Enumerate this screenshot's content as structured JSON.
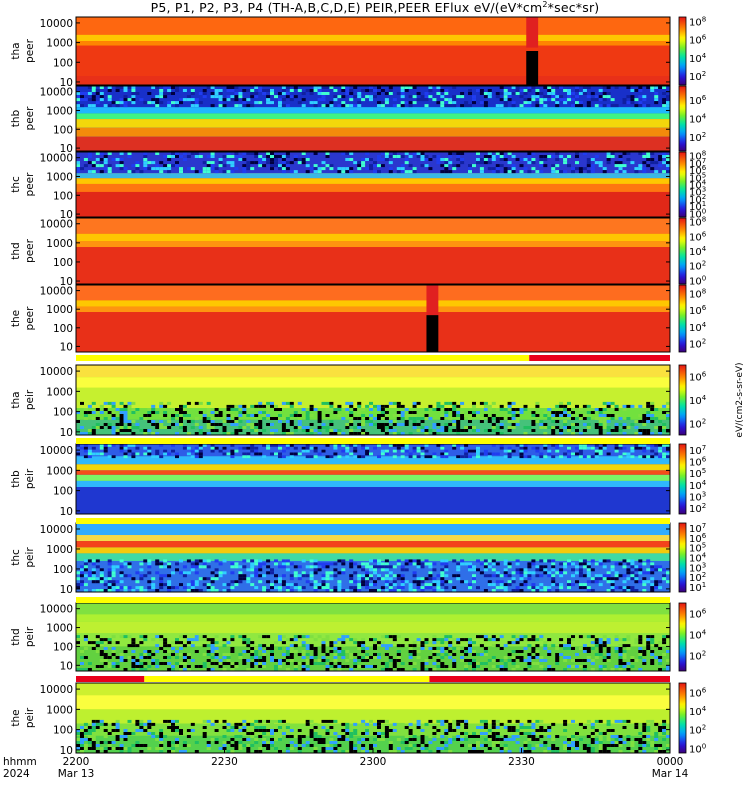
{
  "title": "P5, P1, P2, P3, P4 (TH-A,B,C,D,E) PEIR,PEER EFlux eV/(eV*cm2*sec*sr)",
  "colors": {
    "flag_yellow": "#ffff00",
    "flag_red": "#e8001c",
    "fill_gap": "#000000"
  },
  "chart_data": {
    "type": "heatmap",
    "x_ticks": [
      "2200",
      "2230",
      "2300",
      "2330",
      "0000"
    ],
    "x_sub": [
      "Mar 13",
      "",
      "",
      "",
      "Mar 14"
    ],
    "x_axis_label_1": "hhmm",
    "x_axis_label_2": "2024",
    "x_range": [
      "22:00",
      "00:00"
    ],
    "colorbar_unit_text": "eV/(cm2-s-sr-eV)",
    "colormap": "rainbow",
    "panels": [
      {
        "probe": "tha",
        "species": "peer",
        "label1": "tha",
        "label2": "peer",
        "yticks": [
          "10000",
          "1000",
          "100",
          "10"
        ],
        "yscale": "log",
        "ylim": [
          7,
          20000
        ],
        "cb_ticks": [
          "10^8",
          "10^6",
          "10^4",
          "10^2"
        ],
        "cb_exponents": [
          8,
          6,
          4,
          2
        ],
        "cb_range": [
          1,
          8.5
        ],
        "bg": "#e83018",
        "band_top": [
          0.1,
          0.35
        ],
        "band_color": "#ffb000",
        "has_gap_at": 0.77,
        "cutoff_ratio": 0.08
      },
      {
        "probe": "thb",
        "species": "peer",
        "label1": "thb",
        "label2": "peer",
        "yticks": [
          "10000",
          "1000",
          "100",
          "10"
        ],
        "yscale": "log",
        "ylim": [
          7,
          20000
        ],
        "cb_ticks": [
          "10^6",
          "10^4",
          "10^2"
        ],
        "cb_exponents": [
          6,
          4,
          2
        ],
        "cb_range": [
          0.5,
          7.5
        ],
        "bg": "#2030d0"
      },
      {
        "probe": "thc",
        "species": "peer",
        "label1": "thc",
        "label2": "peer",
        "yticks": [
          "10000",
          "1000",
          "100",
          "10"
        ],
        "yscale": "log",
        "ylim": [
          7,
          20000
        ],
        "cb_ticks": [
          "10^8",
          "10^7",
          "10^6",
          "10^5",
          "10^4",
          "10^3",
          "10^2",
          "10^1",
          "10^0"
        ],
        "cb_exponents": [
          8,
          7,
          6,
          5,
          4,
          3,
          2,
          1,
          0
        ],
        "cb_range": [
          -0.5,
          8.5
        ],
        "bg": "#e83018"
      },
      {
        "probe": "thd",
        "species": "peer",
        "label1": "thd",
        "label2": "peer",
        "yticks": [
          "10000",
          "1000",
          "100",
          "10"
        ],
        "yscale": "log",
        "ylim": [
          7,
          20000
        ],
        "cb_ticks": [
          "10^8",
          "10^6",
          "10^4",
          "10^2",
          "10^0"
        ],
        "cb_exponents": [
          8,
          6,
          4,
          2,
          0
        ],
        "cb_range": [
          -0.5,
          8.5
        ],
        "bg": "#e83018"
      },
      {
        "probe": "the",
        "species": "peer",
        "label1": "the",
        "label2": "peer",
        "yticks": [
          "10000",
          "1000",
          "100",
          "10"
        ],
        "yscale": "log",
        "ylim": [
          5,
          20000
        ],
        "cb_ticks": [
          "10^8",
          "10^6",
          "10^4",
          "10^2"
        ],
        "cb_exponents": [
          8,
          6,
          4,
          2
        ],
        "cb_range": [
          1,
          9
        ],
        "bg": "#e83018"
      },
      {
        "probe": "tha",
        "species": "peir",
        "label1": "tha",
        "label2": "peir",
        "yticks": [
          "10000",
          "1000",
          "100",
          "10"
        ],
        "yscale": "log",
        "ylim": [
          7,
          20000
        ],
        "cb_ticks": [
          "10^6",
          "10^4",
          "10^2"
        ],
        "cb_exponents": [
          6,
          4,
          2
        ],
        "cb_range": [
          1,
          7
        ],
        "bg": "#a0e020"
      },
      {
        "probe": "thb",
        "species": "peir",
        "label1": "thb",
        "label2": "peir",
        "yticks": [
          "10000",
          "1000",
          "100",
          "10"
        ],
        "yscale": "log",
        "ylim": [
          7,
          20000
        ],
        "cb_ticks": [
          "10^7",
          "10^6",
          "10^5",
          "10^4",
          "10^3",
          "10^2"
        ],
        "cb_exponents": [
          7,
          6,
          5,
          4,
          3,
          2
        ],
        "cb_range": [
          1.5,
          7.5
        ],
        "bg": "#2030d0"
      },
      {
        "probe": "thc",
        "species": "peir",
        "label1": "thc",
        "label2": "peir",
        "yticks": [
          "10000",
          "1000",
          "100",
          "10"
        ],
        "yscale": "log",
        "ylim": [
          7,
          20000
        ],
        "cb_ticks": [
          "10^7",
          "10^6",
          "10^5",
          "10^4",
          "10^3",
          "10^2",
          "10^1"
        ],
        "cb_exponents": [
          7,
          6,
          5,
          4,
          3,
          2,
          1
        ],
        "cb_range": [
          0.5,
          7.5
        ],
        "bg": "#2f5fe0"
      },
      {
        "probe": "thd",
        "species": "peir",
        "label1": "thd",
        "label2": "peir",
        "yticks": [
          "10000",
          "1000",
          "100",
          "10"
        ],
        "yscale": "log",
        "ylim": [
          5,
          20000
        ],
        "cb_ticks": [
          "10^6",
          "10^4",
          "10^2"
        ],
        "cb_exponents": [
          6,
          4,
          2
        ],
        "cb_range": [
          0.5,
          7
        ],
        "bg": "#80e040"
      },
      {
        "probe": "the",
        "species": "peir",
        "label1": "the",
        "label2": "peir",
        "yticks": [
          "10000",
          "1000",
          "100",
          "10"
        ],
        "yscale": "log",
        "ylim": [
          7,
          20000
        ],
        "cb_ticks": [
          "10^6",
          "10^4",
          "10^2",
          "10^0"
        ],
        "cb_exponents": [
          6,
          4,
          2,
          0
        ],
        "cb_range": [
          -0.5,
          7
        ],
        "bg": "#a0e020"
      }
    ],
    "flag_bars": [
      {
        "after_panel": "the peer",
        "segments": [
          {
            "from": 0,
            "to": 0.763,
            "color": "yellow"
          },
          {
            "from": 0.763,
            "to": 1,
            "color": "red"
          }
        ]
      },
      {
        "after_panel": "tha peir",
        "segments": [
          {
            "from": 0,
            "to": 1,
            "color": "yellow"
          }
        ]
      },
      {
        "after_panel": "thb peir",
        "segments": [
          {
            "from": 0,
            "to": 1,
            "color": "yellow"
          }
        ]
      },
      {
        "after_panel": "thc peir",
        "segments": [
          {
            "from": 0,
            "to": 1,
            "color": "yellow"
          }
        ]
      },
      {
        "after_panel": "thd peir",
        "segments": [
          {
            "from": 0,
            "to": 0.115,
            "color": "red"
          },
          {
            "from": 0.115,
            "to": 0.595,
            "color": "yellow"
          },
          {
            "from": 0.595,
            "to": 1,
            "color": "red"
          }
        ]
      }
    ]
  }
}
